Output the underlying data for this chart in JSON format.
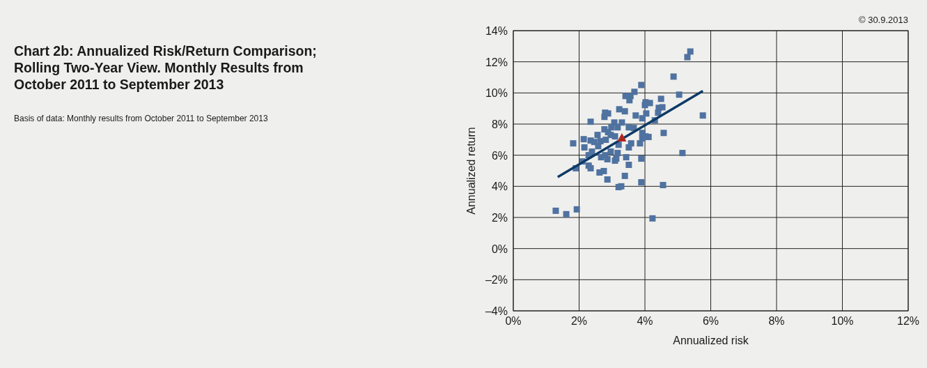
{
  "chart_data": {
    "type": "scatter",
    "title": "Chart 2b: Annualized Risk/Return Comparison; Rolling Two-Year View. Monthly Results from October 2011 to September 2013",
    "subtitle": "Basis of data: Monthly results from October 2011 to September 2013",
    "annotations": [
      "© 30.9.2013"
    ],
    "xlabel": "Annualized risk",
    "ylabel": "Annualized return",
    "xlim": [
      0,
      12
    ],
    "ylim": [
      -4,
      14
    ],
    "xticks": [
      {
        "value": 0,
        "label": "0%"
      },
      {
        "value": 2,
        "label": "2%"
      },
      {
        "value": 4,
        "label": "4%"
      },
      {
        "value": 6,
        "label": "6%"
      },
      {
        "value": 8,
        "label": "8%"
      },
      {
        "value": 10,
        "label": "10%"
      },
      {
        "value": 12,
        "label": "12%"
      }
    ],
    "yticks": [
      {
        "value": -4,
        "label": "–4%"
      },
      {
        "value": -2,
        "label": "–2%"
      },
      {
        "value": 0,
        "label": "0%"
      },
      {
        "value": 2,
        "label": "2%"
      },
      {
        "value": 4,
        "label": "4%"
      },
      {
        "value": 6,
        "label": "6%"
      },
      {
        "value": 8,
        "label": "8%"
      },
      {
        "value": 10,
        "label": "10%"
      },
      {
        "value": 12,
        "label": "12%"
      },
      {
        "value": 14,
        "label": "14%"
      }
    ],
    "grid": true,
    "series": [
      {
        "marker": "square",
        "color": "#4f72a0",
        "x": [
          5.38,
          5.29,
          4.87,
          3.89,
          3.68,
          3.41,
          3.56,
          3.53,
          4.49,
          5.04,
          4.02,
          4.15,
          4.0,
          3.22,
          2.79,
          2.88,
          2.77,
          3.39,
          3.72,
          3.92,
          4.04,
          4.42,
          4.53,
          4.4,
          4.3,
          5.76,
          2.35,
          3.07,
          3.3,
          2.98,
          3.17,
          3.51,
          3.66,
          2.77,
          2.56,
          2.14,
          2.35,
          2.46,
          2.65,
          2.81,
          2.96,
          3.09,
          2.88,
          1.82,
          2.16,
          2.58,
          3.2,
          3.51,
          3.58,
          3.85,
          3.92,
          4.02,
          4.11,
          3.92,
          4.57,
          2.39,
          2.29,
          2.67,
          2.79,
          2.86,
          2.96,
          3.09,
          3.13,
          3.17,
          3.43,
          2.1,
          2.29,
          2.35,
          1.9,
          3.51,
          3.89,
          5.14,
          2.62,
          2.75,
          2.86,
          3.39,
          3.89,
          4.55,
          3.2,
          3.28,
          1.29,
          1.61,
          1.93,
          4.23
        ],
        "values": [
          12.66,
          12.3,
          11.05,
          10.51,
          10.07,
          9.8,
          9.8,
          9.53,
          9.62,
          9.89,
          9.4,
          9.35,
          9.22,
          8.95,
          8.73,
          8.68,
          8.46,
          8.82,
          8.55,
          8.37,
          8.68,
          9.04,
          9.08,
          8.73,
          8.24,
          8.55,
          8.15,
          8.1,
          8.1,
          7.79,
          7.79,
          7.79,
          7.75,
          7.66,
          7.3,
          7.03,
          6.94,
          6.85,
          6.9,
          6.99,
          7.3,
          7.21,
          7.48,
          6.76,
          6.5,
          6.58,
          6.67,
          6.5,
          6.76,
          6.76,
          7.08,
          7.21,
          7.17,
          7.43,
          7.43,
          6.23,
          6.0,
          5.87,
          6.0,
          5.74,
          6.23,
          5.65,
          5.78,
          6.14,
          5.87,
          5.6,
          5.33,
          5.16,
          5.16,
          5.38,
          5.78,
          6.14,
          4.89,
          4.98,
          4.44,
          4.67,
          4.26,
          4.08,
          3.95,
          4.0,
          2.43,
          2.21,
          2.52,
          1.94
        ]
      },
      {
        "type": "line",
        "marker": "none",
        "line_style": "solid",
        "color": "#0d3a66",
        "x": [
          1.35,
          5.76
        ],
        "values": [
          4.6,
          10.13
        ]
      },
      {
        "marker": "triangle",
        "color": "#b0261e",
        "x": [
          3.3
        ],
        "values": [
          7.1
        ]
      }
    ]
  }
}
